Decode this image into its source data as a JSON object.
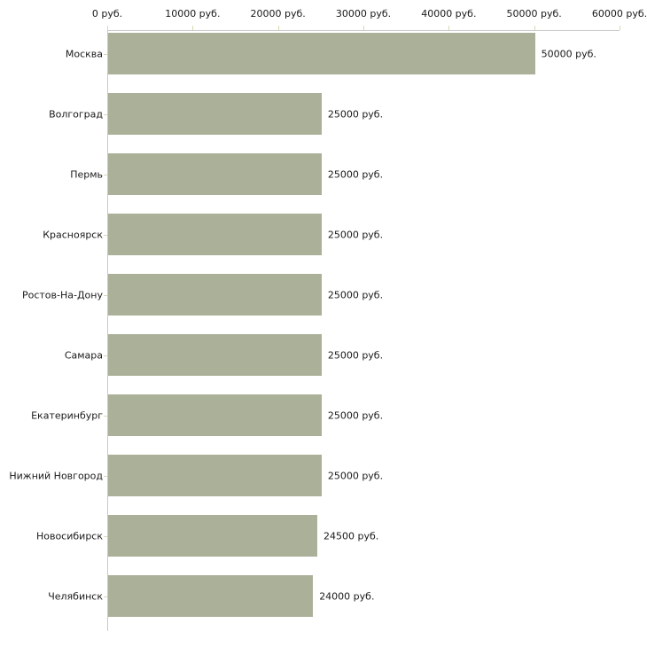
{
  "chart_data": {
    "type": "bar",
    "orientation": "horizontal",
    "title": "",
    "xlabel": "",
    "ylabel": "",
    "unit": "руб.",
    "categories": [
      "Москва",
      "Волгоград",
      "Пермь",
      "Красноярск",
      "Ростов-На-Дону",
      "Самара",
      "Екатеринбург",
      "Нижний Новгород",
      "Новосибирск",
      "Челябинск"
    ],
    "values": [
      50000,
      25000,
      25000,
      25000,
      25000,
      25000,
      25000,
      25000,
      24500,
      24000
    ],
    "value_labels": [
      "50000 руб.",
      "25000 руб.",
      "25000 руб.",
      "25000 руб.",
      "25000 руб.",
      "25000 руб.",
      "25000 руб.",
      "25000 руб.",
      "24500 руб.",
      "24000 руб."
    ],
    "x_ticks": [
      0,
      10000,
      20000,
      30000,
      40000,
      50000,
      60000
    ],
    "x_tick_labels": [
      "0 руб.",
      "10000 руб.",
      "20000 руб.",
      "30000 руб.",
      "40000 руб.",
      "50000 руб.",
      "60000 руб."
    ],
    "xlim": [
      0,
      60000
    ],
    "grid": false,
    "legend": false,
    "axis_position": "top",
    "colors": {
      "bar": "#abb198",
      "axis_line": "#c8c8c8",
      "tick_mark": "#d8d9b4",
      "text": "#1a1a1a",
      "background": "#ffffff"
    }
  }
}
